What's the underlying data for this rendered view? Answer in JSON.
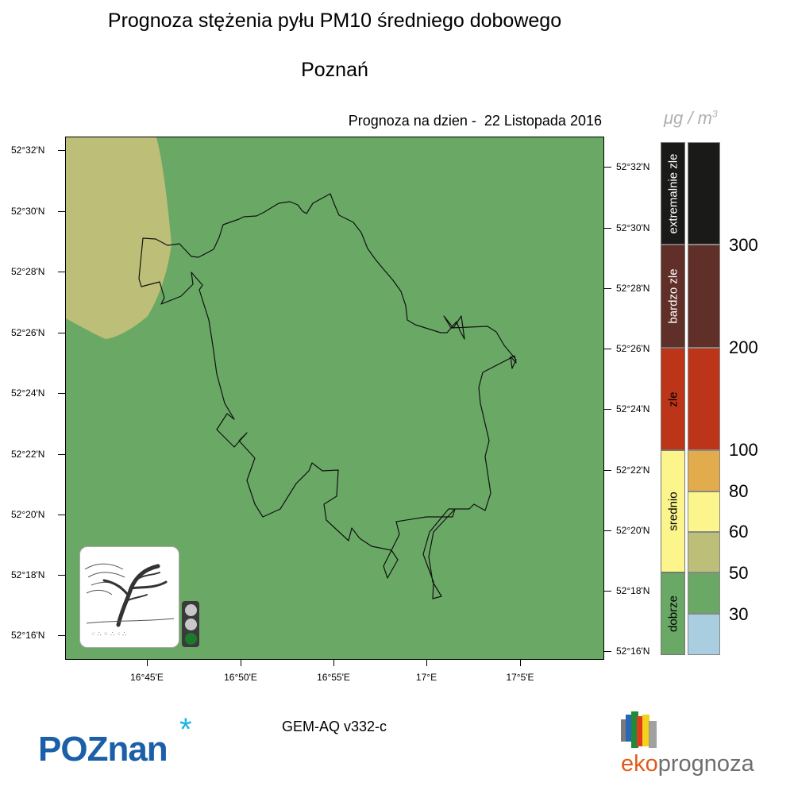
{
  "header": {
    "title": "Prognoza stężenia pyłu PM10 średniego dobowego",
    "subtitle": "Poznań",
    "forecast_label": "Prognoza na dzien -  22 Listopada 2016"
  },
  "map": {
    "lat_labels_left": [
      "52°32'N",
      "52°30'N",
      "52°28'N",
      "52°26'N",
      "52°24'N",
      "52°22'N",
      "52°20'N",
      "52°18'N",
      "52°16'N"
    ],
    "lat_labels_right": [
      "52°32'N",
      "52°30'N",
      "52°28'N",
      "52°26'N",
      "52°24'N",
      "52°22'N",
      "52°20'N",
      "52°18'N",
      "52°16'N"
    ],
    "lon_labels": [
      "16°45'E",
      "16°50'E",
      "16°55'E",
      "17°E",
      "17°5'E"
    ],
    "background_color": "#6aa866",
    "zone_color": "#bdbf78",
    "boundary_color": "#111111"
  },
  "legend": {
    "unit_main": "μg / m",
    "unit_sup": "3",
    "categories": [
      {
        "label": "extremalnie zle",
        "color": "#1a1a18",
        "text_color": "#ffffff"
      },
      {
        "label": "bardzo zle",
        "color": "#5f2f28",
        "text_color": "#ffffff"
      },
      {
        "label": "zle",
        "color": "#bd3519",
        "text_color": "#000000"
      },
      {
        "label": "srednio",
        "color": "#fbf58c",
        "text_color": "#000000"
      },
      {
        "label": "dobrze",
        "color": "#6aa866",
        "text_color": "#000000"
      }
    ],
    "swatches": [
      {
        "color": "#1a1a18"
      },
      {
        "color": "#5f2f28"
      },
      {
        "color": "#bd3519"
      },
      {
        "color": "#e2ac4c"
      },
      {
        "color": "#fbf58c"
      },
      {
        "color": "#bdbf78"
      },
      {
        "color": "#6aa866"
      },
      {
        "color": "#a8cee0"
      }
    ],
    "levels": [
      "300",
      "200",
      "100",
      "80",
      "60",
      "50",
      "30"
    ]
  },
  "traffic_light": {
    "lights": [
      "#c8c8c8",
      "#c8c8c8",
      "#1d7a2c"
    ]
  },
  "footer": {
    "model": "GEM-AQ v332-c",
    "logo_left_text": "POZnan",
    "logo_left_star": "*",
    "logo_right_part1": "eko",
    "logo_right_part2": "prognoza"
  }
}
